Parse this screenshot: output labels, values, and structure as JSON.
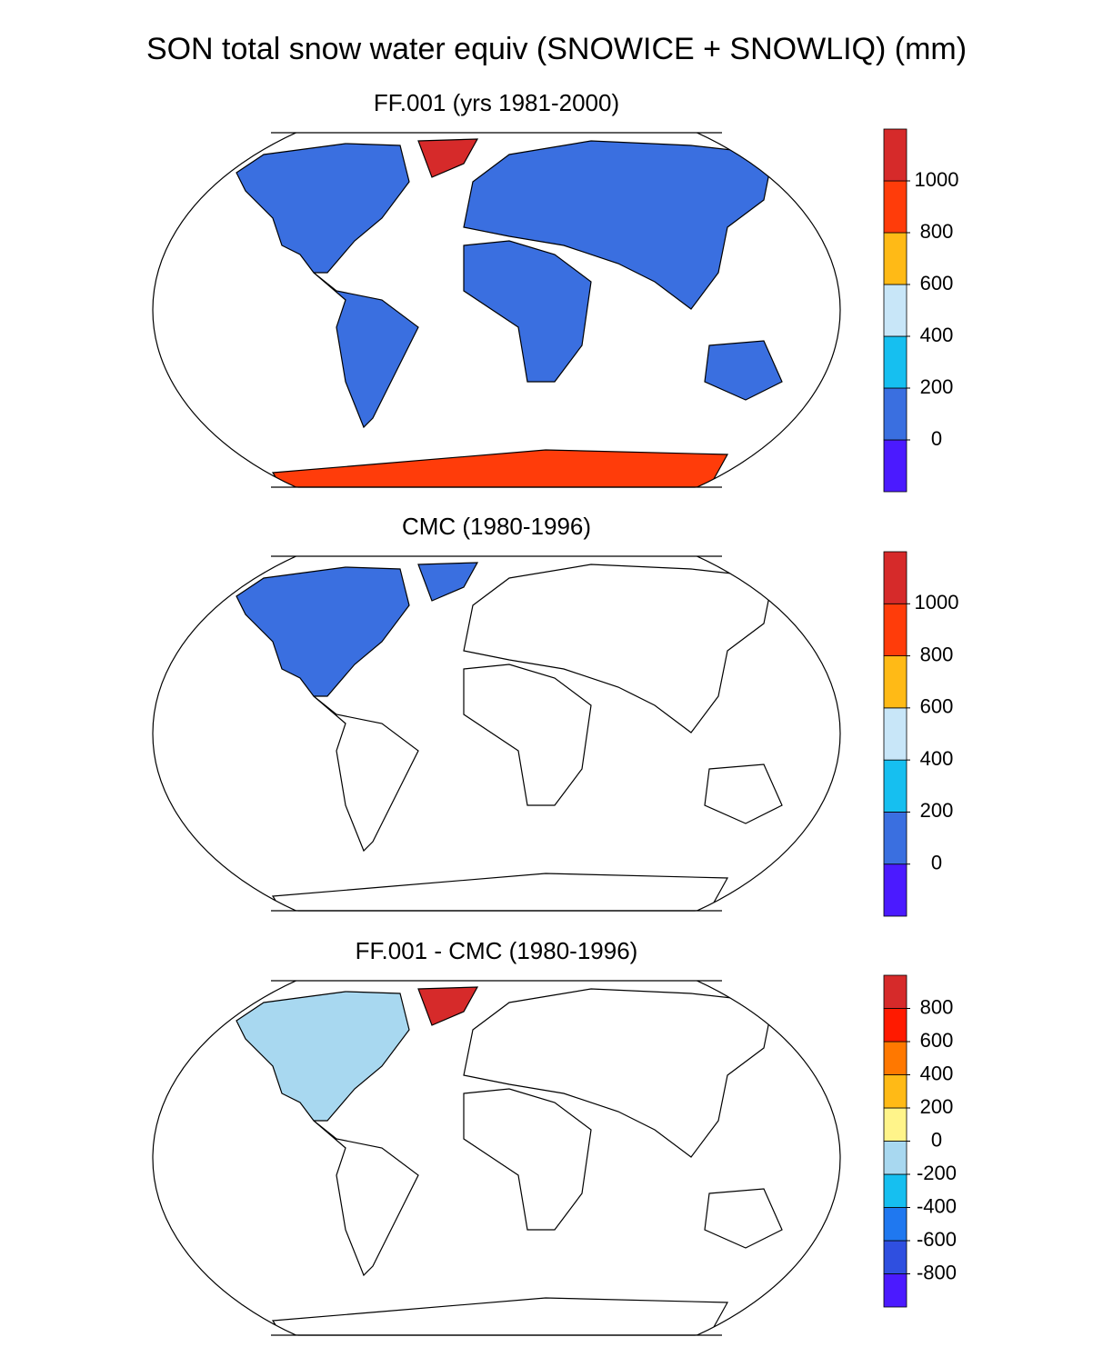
{
  "title": "SON total snow water equiv (SNOWICE + SNOWLIQ) (mm)",
  "panels": [
    {
      "title": "FF.001 (yrs 1981-2000)",
      "colorbar": {
        "levels": [
          0,
          200,
          400,
          600,
          800,
          1000
        ],
        "colors": [
          "#4b1aff",
          "#3a6fe0",
          "#16bff0",
          "#c8e6f8",
          "#ffba16",
          "#ff3c0a",
          "#d62a2a"
        ]
      }
    },
    {
      "title": "CMC (1980-1996)",
      "colorbar": {
        "levels": [
          0,
          200,
          400,
          600,
          800,
          1000
        ],
        "colors": [
          "#4b1aff",
          "#3a6fe0",
          "#16bff0",
          "#c8e6f8",
          "#ffba16",
          "#ff3c0a",
          "#d62a2a"
        ]
      }
    },
    {
      "title": "FF.001 - CMC (1980-1996)",
      "colorbar": {
        "levels": [
          -800,
          -600,
          -400,
          -200,
          0,
          200,
          400,
          600,
          800
        ],
        "colors": [
          "#4b1aff",
          "#2f4fe0",
          "#1f78f0",
          "#16bff0",
          "#a8d8f0",
          "#fff48a",
          "#ffba16",
          "#ff7800",
          "#ff1a00",
          "#d62a2a"
        ]
      }
    }
  ]
}
